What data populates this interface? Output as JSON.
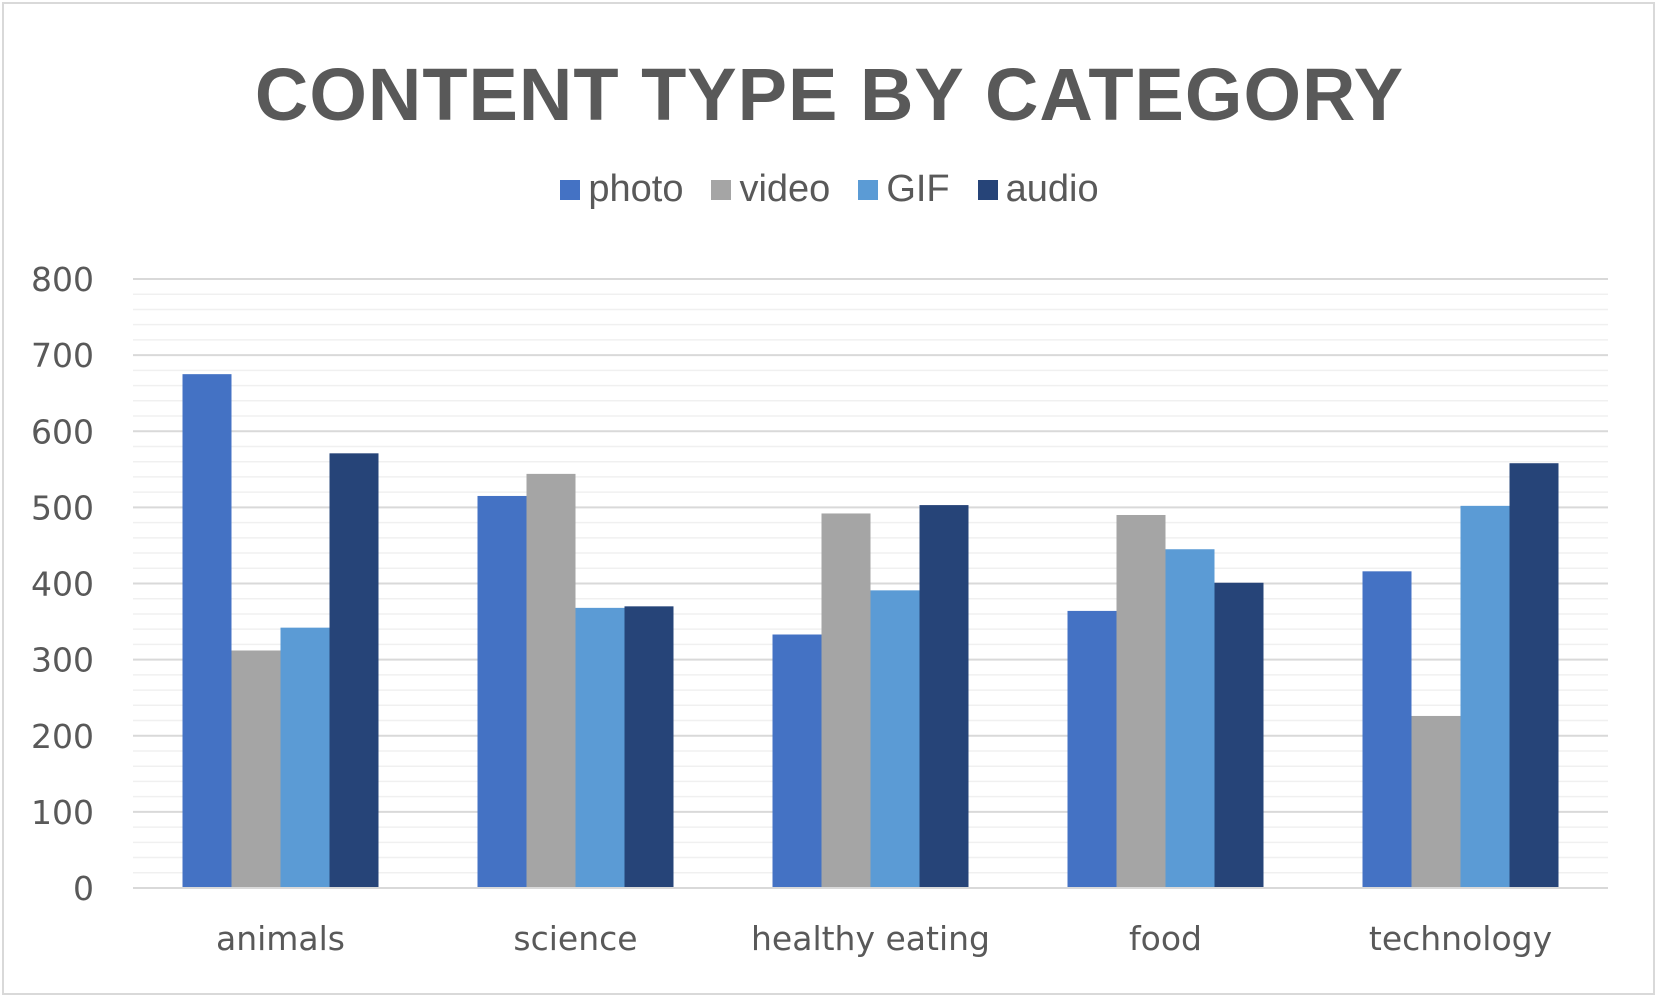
{
  "chart_data": {
    "type": "bar",
    "title": "CONTENT TYPE BY CATEGORY",
    "categories": [
      "animals",
      "science",
      "healthy eating",
      "food",
      "technology"
    ],
    "series": [
      {
        "name": "photo",
        "color": "#4472c4",
        "values": [
          675,
          515,
          333,
          364,
          416
        ]
      },
      {
        "name": "video",
        "color": "#a5a5a5",
        "values": [
          312,
          544,
          492,
          490,
          226
        ]
      },
      {
        "name": "GIF",
        "color": "#5b9bd5",
        "values": [
          342,
          368,
          391,
          445,
          502
        ]
      },
      {
        "name": "audio",
        "color": "#264478",
        "values": [
          571,
          370,
          503,
          401,
          558
        ]
      }
    ],
    "ylim": [
      0,
      800
    ],
    "yticks": [
      "0",
      "100",
      "200",
      "300",
      "400",
      "500",
      "600",
      "700",
      "800"
    ],
    "grid": true,
    "legend_position": "top"
  }
}
